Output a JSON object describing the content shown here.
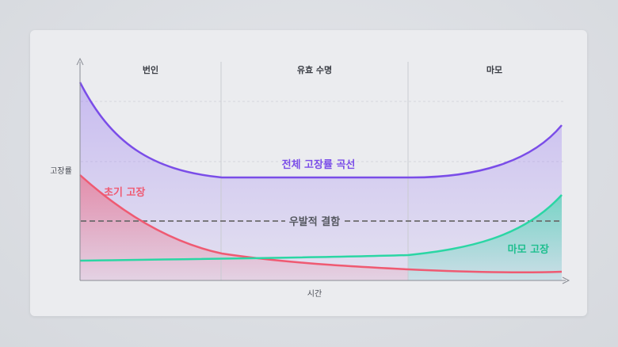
{
  "phases": [
    "번인",
    "유효 수명",
    "마모"
  ],
  "axis": {
    "y_label": "고장률",
    "x_label": "시간"
  },
  "curves": {
    "total": {
      "label": "전체 고장률 곡선",
      "color": "#7a4de8"
    },
    "early": {
      "label": "초기 고장",
      "color": "#ef5a72"
    },
    "random": {
      "label": "우발적 결함",
      "color": "#6b6b6b"
    },
    "wearout": {
      "label": "마모 고장",
      "color": "#2bd6a4"
    }
  }
}
